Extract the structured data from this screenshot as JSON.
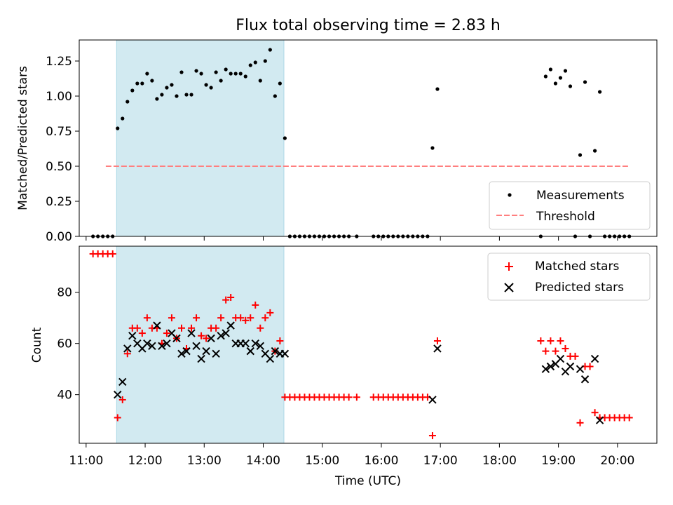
{
  "title": "Flux total observing time = 2.83 h",
  "colors": {
    "highlight": "#add8e6",
    "matched": "#ff0000",
    "predicted": "#000000",
    "threshold": "#ff7f7f",
    "measure": "#000000"
  },
  "chart_data": [
    {
      "type": "scatter",
      "ylabel": "Matched/Predicted stars",
      "ylim": [
        0,
        1.4
      ],
      "yticks": [
        0.0,
        0.25,
        0.5,
        0.75,
        1.0,
        1.25
      ],
      "ytick_labels": [
        "0.00",
        "0.25",
        "0.50",
        "0.75",
        "1.00",
        "1.25"
      ],
      "xlim": [
        "10:53",
        "20:40"
      ],
      "highlight_span": [
        "11:31",
        "14:21"
      ],
      "legend": {
        "placement": "lower right",
        "entries": [
          "Measurements",
          "Threshold"
        ]
      },
      "threshold": {
        "name": "Threshold",
        "y": 0.5,
        "x": [
          "11:20",
          "20:12"
        ]
      },
      "series": [
        {
          "name": "Measurements",
          "points": [
            [
              "11:07",
              0
            ],
            [
              "11:12",
              0
            ],
            [
              "11:17",
              0
            ],
            [
              "11:22",
              0
            ],
            [
              "11:27",
              0
            ],
            [
              "11:32",
              0.77
            ],
            [
              "11:37",
              0.84
            ],
            [
              "11:42",
              0.96
            ],
            [
              "11:47",
              1.04
            ],
            [
              "11:52",
              1.09
            ],
            [
              "11:57",
              1.09
            ],
            [
              "12:02",
              1.16
            ],
            [
              "12:07",
              1.11
            ],
            [
              "12:12",
              0.98
            ],
            [
              "12:17",
              1.01
            ],
            [
              "12:22",
              1.06
            ],
            [
              "12:27",
              1.08
            ],
            [
              "12:32",
              1.0
            ],
            [
              "12:37",
              1.17
            ],
            [
              "12:42",
              1.01
            ],
            [
              "12:47",
              1.01
            ],
            [
              "12:52",
              1.18
            ],
            [
              "12:57",
              1.16
            ],
            [
              "13:02",
              1.08
            ],
            [
              "13:07",
              1.06
            ],
            [
              "13:12",
              1.17
            ],
            [
              "13:17",
              1.11
            ],
            [
              "13:22",
              1.19
            ],
            [
              "13:27",
              1.16
            ],
            [
              "13:32",
              1.16
            ],
            [
              "13:37",
              1.16
            ],
            [
              "13:42",
              1.14
            ],
            [
              "13:47",
              1.22
            ],
            [
              "13:52",
              1.24
            ],
            [
              "13:57",
              1.11
            ],
            [
              "14:02",
              1.25
            ],
            [
              "14:07",
              1.33
            ],
            [
              "14:12",
              1.0
            ],
            [
              "14:17",
              1.09
            ],
            [
              "14:22",
              0.7
            ],
            [
              "14:27",
              0
            ],
            [
              "14:32",
              0
            ],
            [
              "14:37",
              0
            ],
            [
              "14:42",
              0
            ],
            [
              "14:47",
              0
            ],
            [
              "14:52",
              0
            ],
            [
              "14:57",
              0
            ],
            [
              "15:02",
              0
            ],
            [
              "15:07",
              0
            ],
            [
              "15:12",
              0
            ],
            [
              "15:17",
              0
            ],
            [
              "15:22",
              0
            ],
            [
              "15:27",
              0
            ],
            [
              "15:35",
              0
            ],
            [
              "15:52",
              0
            ],
            [
              "15:57",
              0
            ],
            [
              "16:02",
              0
            ],
            [
              "16:07",
              0
            ],
            [
              "16:12",
              0
            ],
            [
              "16:17",
              0
            ],
            [
              "16:22",
              0
            ],
            [
              "16:27",
              0
            ],
            [
              "16:32",
              0
            ],
            [
              "16:37",
              0
            ],
            [
              "16:42",
              0
            ],
            [
              "16:47",
              0
            ],
            [
              "16:52",
              0.63
            ],
            [
              "16:57",
              1.05
            ],
            [
              "18:42",
              0
            ],
            [
              "18:47",
              1.14
            ],
            [
              "18:52",
              1.19
            ],
            [
              "18:57",
              1.09
            ],
            [
              "19:02",
              1.13
            ],
            [
              "19:07",
              1.18
            ],
            [
              "19:12",
              1.07
            ],
            [
              "19:17",
              0
            ],
            [
              "19:22",
              0.58
            ],
            [
              "19:27",
              1.1
            ],
            [
              "19:32",
              0
            ],
            [
              "19:37",
              0.61
            ],
            [
              "19:42",
              1.03
            ],
            [
              "19:47",
              0
            ],
            [
              "19:52",
              0
            ],
            [
              "19:57",
              0
            ],
            [
              "20:02",
              0
            ],
            [
              "20:07",
              0
            ],
            [
              "20:12",
              0
            ]
          ]
        }
      ]
    },
    {
      "type": "scatter",
      "xlabel": "Time (UTC)",
      "ylabel": "Count",
      "ylim": [
        21,
        98
      ],
      "yticks": [
        40,
        60,
        80
      ],
      "ytick_labels": [
        "40",
        "60",
        "80"
      ],
      "xlim": [
        "10:53",
        "20:40"
      ],
      "xticks": [
        "11:00",
        "12:00",
        "13:00",
        "14:00",
        "15:00",
        "16:00",
        "17:00",
        "18:00",
        "19:00",
        "20:00"
      ],
      "highlight_span": [
        "11:31",
        "14:21"
      ],
      "legend": {
        "placement": "upper right",
        "entries": [
          "Matched stars",
          "Predicted stars"
        ]
      },
      "series": [
        {
          "name": "Matched stars",
          "marker": "plus",
          "points": [
            [
              "11:07",
              95
            ],
            [
              "11:12",
              95
            ],
            [
              "11:17",
              95
            ],
            [
              "11:22",
              95
            ],
            [
              "11:27",
              95
            ],
            [
              "11:32",
              31
            ],
            [
              "11:37",
              38
            ],
            [
              "11:42",
              56
            ],
            [
              "11:47",
              66
            ],
            [
              "11:52",
              66
            ],
            [
              "11:57",
              64
            ],
            [
              "12:02",
              70
            ],
            [
              "12:07",
              66
            ],
            [
              "12:12",
              66
            ],
            [
              "12:17",
              60
            ],
            [
              "12:22",
              64
            ],
            [
              "12:27",
              70
            ],
            [
              "12:32",
              62
            ],
            [
              "12:37",
              66
            ],
            [
              "12:42",
              58
            ],
            [
              "12:47",
              66
            ],
            [
              "12:52",
              70
            ],
            [
              "12:57",
              63
            ],
            [
              "13:02",
              62
            ],
            [
              "13:07",
              66
            ],
            [
              "13:12",
              66
            ],
            [
              "13:17",
              70
            ],
            [
              "13:22",
              77
            ],
            [
              "13:27",
              78
            ],
            [
              "13:32",
              70
            ],
            [
              "13:37",
              70
            ],
            [
              "13:42",
              69
            ],
            [
              "13:47",
              70
            ],
            [
              "13:52",
              75
            ],
            [
              "13:57",
              66
            ],
            [
              "14:02",
              70
            ],
            [
              "14:07",
              72
            ],
            [
              "14:12",
              57
            ],
            [
              "14:17",
              61
            ],
            [
              "14:22",
              39
            ],
            [
              "14:27",
              39
            ],
            [
              "14:32",
              39
            ],
            [
              "14:37",
              39
            ],
            [
              "14:42",
              39
            ],
            [
              "14:47",
              39
            ],
            [
              "14:52",
              39
            ],
            [
              "14:57",
              39
            ],
            [
              "15:02",
              39
            ],
            [
              "15:07",
              39
            ],
            [
              "15:12",
              39
            ],
            [
              "15:17",
              39
            ],
            [
              "15:22",
              39
            ],
            [
              "15:27",
              39
            ],
            [
              "15:35",
              39
            ],
            [
              "15:52",
              39
            ],
            [
              "15:57",
              39
            ],
            [
              "16:02",
              39
            ],
            [
              "16:07",
              39
            ],
            [
              "16:12",
              39
            ],
            [
              "16:17",
              39
            ],
            [
              "16:22",
              39
            ],
            [
              "16:27",
              39
            ],
            [
              "16:32",
              39
            ],
            [
              "16:37",
              39
            ],
            [
              "16:42",
              39
            ],
            [
              "16:47",
              39
            ],
            [
              "16:52",
              24
            ],
            [
              "16:57",
              61
            ],
            [
              "18:42",
              61
            ],
            [
              "18:47",
              57
            ],
            [
              "18:52",
              61
            ],
            [
              "18:57",
              57
            ],
            [
              "19:02",
              61
            ],
            [
              "19:07",
              58
            ],
            [
              "19:12",
              55
            ],
            [
              "19:17",
              55
            ],
            [
              "19:22",
              29
            ],
            [
              "19:27",
              51
            ],
            [
              "19:32",
              51
            ],
            [
              "19:37",
              33
            ],
            [
              "19:42",
              31
            ],
            [
              "19:47",
              31
            ],
            [
              "19:52",
              31
            ],
            [
              "19:57",
              31
            ],
            [
              "20:02",
              31
            ],
            [
              "20:07",
              31
            ],
            [
              "20:12",
              31
            ]
          ]
        },
        {
          "name": "Predicted stars",
          "marker": "x",
          "points": [
            [
              "11:32",
              40
            ],
            [
              "11:37",
              45
            ],
            [
              "11:42",
              58
            ],
            [
              "11:47",
              63
            ],
            [
              "11:52",
              60
            ],
            [
              "11:57",
              58
            ],
            [
              "12:02",
              60
            ],
            [
              "12:07",
              59
            ],
            [
              "12:12",
              67
            ],
            [
              "12:17",
              59
            ],
            [
              "12:22",
              60
            ],
            [
              "12:27",
              64
            ],
            [
              "12:32",
              62
            ],
            [
              "12:37",
              56
            ],
            [
              "12:42",
              57
            ],
            [
              "12:47",
              64
            ],
            [
              "12:52",
              59
            ],
            [
              "12:57",
              54
            ],
            [
              "13:02",
              57
            ],
            [
              "13:07",
              62
            ],
            [
              "13:12",
              56
            ],
            [
              "13:17",
              63
            ],
            [
              "13:22",
              64
            ],
            [
              "13:27",
              67
            ],
            [
              "13:32",
              60
            ],
            [
              "13:37",
              60
            ],
            [
              "13:42",
              60
            ],
            [
              "13:47",
              57
            ],
            [
              "13:52",
              60
            ],
            [
              "13:57",
              59
            ],
            [
              "14:02",
              56
            ],
            [
              "14:07",
              54
            ],
            [
              "14:12",
              57
            ],
            [
              "14:17",
              56
            ],
            [
              "14:22",
              56
            ],
            [
              "16:52",
              38
            ],
            [
              "16:57",
              58
            ],
            [
              "18:47",
              50
            ],
            [
              "18:52",
              51
            ],
            [
              "18:57",
              52
            ],
            [
              "19:02",
              54
            ],
            [
              "19:07",
              49
            ],
            [
              "19:12",
              51
            ],
            [
              "19:22",
              50
            ],
            [
              "19:27",
              46
            ],
            [
              "19:37",
              54
            ],
            [
              "19:42",
              30
            ]
          ]
        }
      ]
    }
  ]
}
